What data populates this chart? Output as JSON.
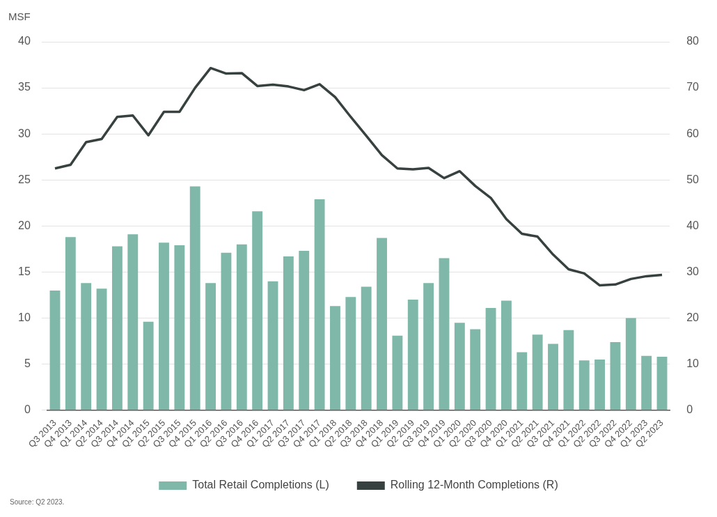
{
  "chart_data": {
    "type": "bar",
    "ylabel": "MSF",
    "categories": [
      "Q3 2013",
      "Q4 2013",
      "Q1 2014",
      "Q2 2014",
      "Q3 2014",
      "Q4 2014",
      "Q1 2015",
      "Q2 2015",
      "Q3 2015",
      "Q4 2015",
      "Q1 2016",
      "Q2 2016",
      "Q3 2016",
      "Q4 2016",
      "Q1 2017",
      "Q2 2017",
      "Q3 2017",
      "Q4 2017",
      "Q1 2018",
      "Q2 2018",
      "Q3 2018",
      "Q4 2018",
      "Q1 2019",
      "Q2 2019",
      "Q3 2019",
      "Q4 2019",
      "Q1 2020",
      "Q2 2020",
      "Q3 2020",
      "Q4 2020",
      "Q1 2021",
      "Q2 2021",
      "Q3 2021",
      "Q4 2021",
      "Q1 2022",
      "Q2 2022",
      "Q3 2022",
      "Q4 2022",
      "Q1 2023",
      "Q2 2023"
    ],
    "series": [
      {
        "name": "Total Retail Completions (L)",
        "color": "#7fb8a9",
        "values": [
          13.0,
          18.8,
          13.8,
          13.2,
          17.8,
          19.1,
          9.6,
          18.2,
          17.9,
          24.3,
          13.8,
          17.1,
          18.0,
          21.6,
          14.0,
          16.7,
          17.3,
          22.9,
          11.3,
          12.3,
          13.4,
          18.7,
          8.1,
          12.0,
          13.8,
          16.5,
          9.5,
          8.8,
          11.1,
          11.9,
          6.3,
          8.2,
          7.2,
          8.7,
          5.4,
          5.5,
          7.4,
          10.0,
          5.9,
          5.8
        ]
      },
      {
        "name": "Rolling 12-Month Completions (R)",
        "type": "line",
        "axis": "y2",
        "color": "#37413f",
        "values": [
          52.5,
          53.3,
          58.2,
          58.9,
          63.7,
          64.0,
          59.7,
          64.8,
          64.8,
          70.0,
          74.3,
          73.1,
          73.2,
          70.4,
          70.7,
          70.3,
          69.5,
          70.8,
          68.0,
          63.7,
          59.6,
          55.4,
          52.5,
          52.3,
          52.6,
          50.4,
          51.9,
          48.7,
          46.1,
          41.5,
          38.3,
          37.7,
          33.8,
          30.6,
          29.7,
          27.1,
          27.3,
          28.5,
          29.1,
          29.4
        ]
      }
    ],
    "ylim": [
      0,
      40
    ],
    "yticks": [
      0,
      5,
      10,
      15,
      20,
      25,
      30,
      35,
      40
    ],
    "y2lim": [
      0,
      80
    ],
    "y2ticks": [
      0,
      10,
      20,
      30,
      40,
      50,
      60,
      70,
      80
    ],
    "grid": "y",
    "legend": "bottom",
    "marker": "none",
    "annotations": [
      "Source: Q2 2023."
    ]
  }
}
